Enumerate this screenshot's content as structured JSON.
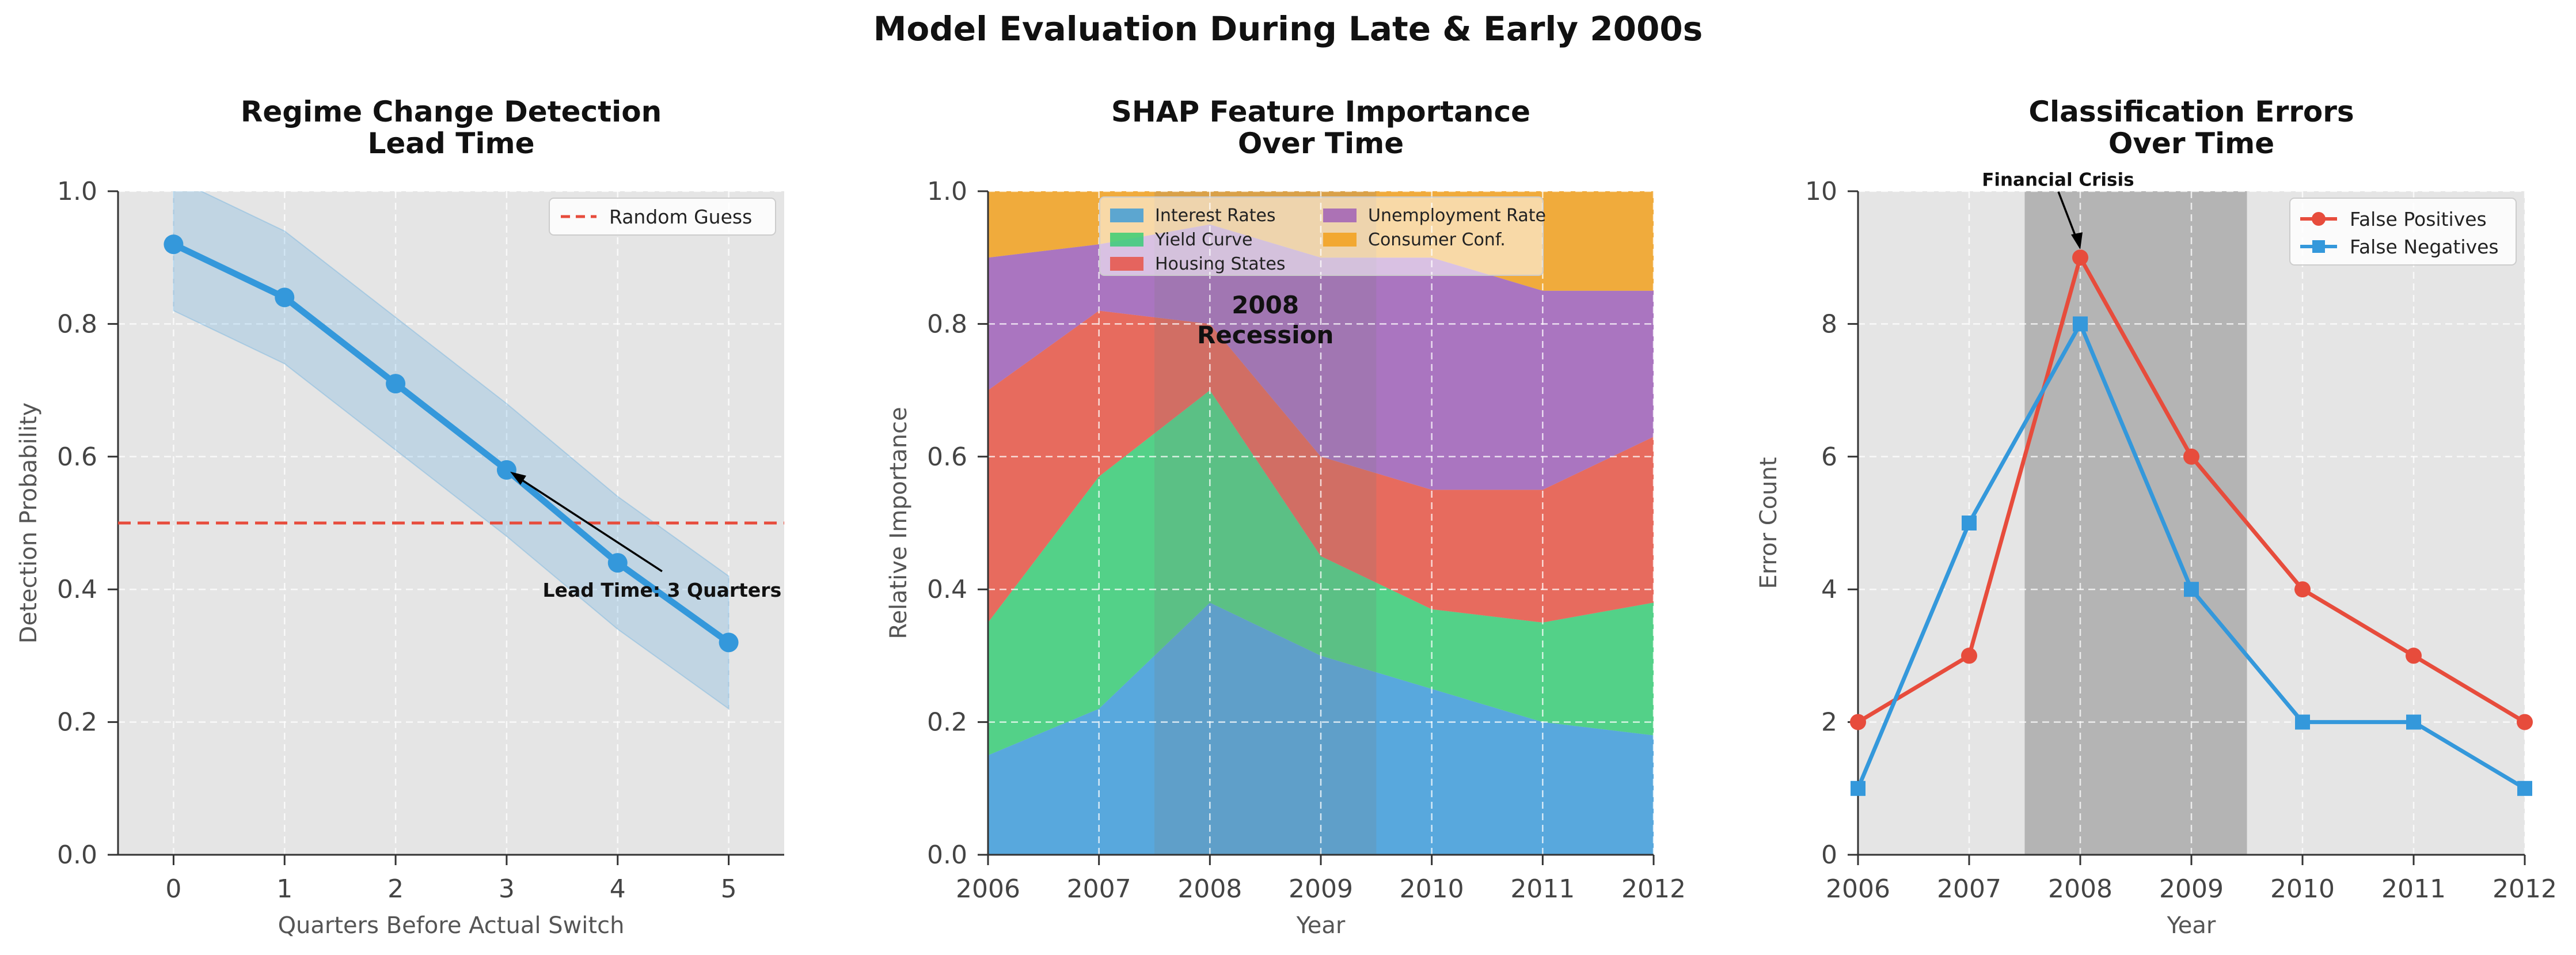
{
  "suptitle": "Model Evaluation During Late & Early 2000s",
  "colors": {
    "panel_bg": "#e5e5e5",
    "blue": "#3498db",
    "red": "#e74c3c",
    "green": "#2ecc71",
    "purple": "#9b59b6",
    "orange": "#f39c12",
    "crisis_shade": "#999999"
  },
  "chart_data": [
    {
      "type": "line",
      "title_lines": [
        "Regime Change Detection",
        "Lead Time"
      ],
      "xlabel": "Quarters Before Actual Switch",
      "ylabel": "Detection Probability",
      "xlim": [
        -0.5,
        5.5
      ],
      "ylim": [
        0,
        1.0
      ],
      "xticks": [
        0,
        1,
        2,
        3,
        4,
        5
      ],
      "yticks": [
        0.0,
        0.2,
        0.4,
        0.6,
        0.8,
        1.0
      ],
      "ytick_labels": [
        "0.0",
        "0.2",
        "0.4",
        "0.6",
        "0.8",
        "1.0"
      ],
      "grid": true,
      "legend_position": "upper-right",
      "series": [
        {
          "name": "",
          "x": [
            0,
            1,
            2,
            3,
            4,
            5
          ],
          "y": [
            0.92,
            0.84,
            0.71,
            0.58,
            0.44,
            0.32
          ],
          "band_lower": [
            0.82,
            0.74,
            0.61,
            0.48,
            0.34,
            0.22
          ],
          "band_upper": [
            1.02,
            0.94,
            0.81,
            0.68,
            0.54,
            0.42
          ]
        }
      ],
      "reference_line": {
        "name": "Random Guess",
        "y": 0.5,
        "style": "dashed"
      },
      "annotation": {
        "text": "Lead Time: 3 Quarters",
        "point": [
          3,
          0.58
        ],
        "text_at": [
          4.4,
          0.415
        ]
      }
    },
    {
      "type": "area",
      "stacked": true,
      "title_lines": [
        "SHAP Feature Importance",
        "Over Time"
      ],
      "xlabel": "Year",
      "ylabel": "Relative Importance",
      "xlim": [
        2006,
        2012
      ],
      "ylim": [
        0,
        1.0
      ],
      "xticks": [
        2006,
        2007,
        2008,
        2009,
        2010,
        2011,
        2012
      ],
      "yticks": [
        0.0,
        0.2,
        0.4,
        0.6,
        0.8,
        1.0
      ],
      "ytick_labels": [
        "0.0",
        "0.2",
        "0.4",
        "0.6",
        "0.8",
        "1.0"
      ],
      "grid": true,
      "legend_position": "upper-center",
      "x": [
        2006,
        2007,
        2008,
        2009,
        2010,
        2011,
        2012
      ],
      "series": [
        {
          "name": "Interest Rates",
          "values": [
            0.15,
            0.22,
            0.38,
            0.3,
            0.25,
            0.2,
            0.18
          ]
        },
        {
          "name": "Yield Curve",
          "values": [
            0.2,
            0.35,
            0.32,
            0.15,
            0.12,
            0.15,
            0.2
          ]
        },
        {
          "name": "Housing States",
          "values": [
            0.35,
            0.25,
            0.1,
            0.15,
            0.18,
            0.2,
            0.25
          ]
        },
        {
          "name": "Unemployment Rate",
          "values": [
            0.2,
            0.1,
            0.15,
            0.3,
            0.35,
            0.3,
            0.22
          ]
        },
        {
          "name": "Consumer Conf.",
          "values": [
            0.1,
            0.08,
            0.05,
            0.1,
            0.1,
            0.15,
            0.15
          ]
        }
      ],
      "shaded_span": {
        "from": 2007.5,
        "to": 2009.5,
        "label_lines": [
          "2008",
          "Recession"
        ]
      }
    },
    {
      "type": "line",
      "title_lines": [
        "Classification Errors",
        "Over Time"
      ],
      "xlabel": "Year",
      "ylabel": "Error Count",
      "xlim": [
        2006,
        2012
      ],
      "ylim": [
        0,
        10
      ],
      "xticks": [
        2006,
        2007,
        2008,
        2009,
        2010,
        2011,
        2012
      ],
      "yticks": [
        0,
        2,
        4,
        6,
        8,
        10
      ],
      "ytick_labels": [
        "0",
        "2",
        "4",
        "6",
        "8",
        "10"
      ],
      "grid": true,
      "legend_position": "upper-right",
      "x": [
        2006,
        2007,
        2008,
        2009,
        2010,
        2011,
        2012
      ],
      "series": [
        {
          "name": "False Positives",
          "values": [
            2,
            3,
            9,
            6,
            4,
            3,
            2
          ],
          "marker": "circle"
        },
        {
          "name": "False Negatives",
          "values": [
            1,
            5,
            8,
            4,
            2,
            2,
            1
          ],
          "marker": "square"
        }
      ],
      "shaded_span": {
        "from": 2007.5,
        "to": 2009.5
      },
      "annotation": {
        "text": "Financial Crisis",
        "point": [
          2008,
          9
        ],
        "text_at": [
          2007.8,
          10.15
        ]
      }
    }
  ]
}
